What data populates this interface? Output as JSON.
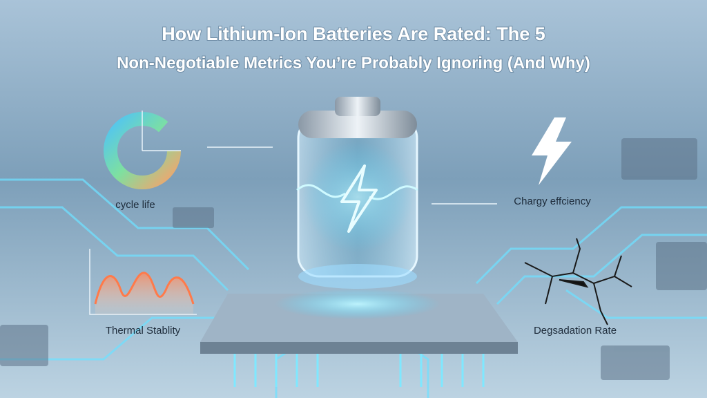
{
  "header": {
    "title_lines": [
      "How Lithium-Ion Batteries Are Rated: The 5",
      "Non-Negotiable Metrics You’re Probably Ignoring (And Why)"
    ]
  },
  "labels": {
    "cycle_life": "cycle life",
    "thermal_stability": "Thermal Stablity",
    "charge_efficiency": "Chargy effciency",
    "degradation_rate": "Degsadation Rate"
  }
}
